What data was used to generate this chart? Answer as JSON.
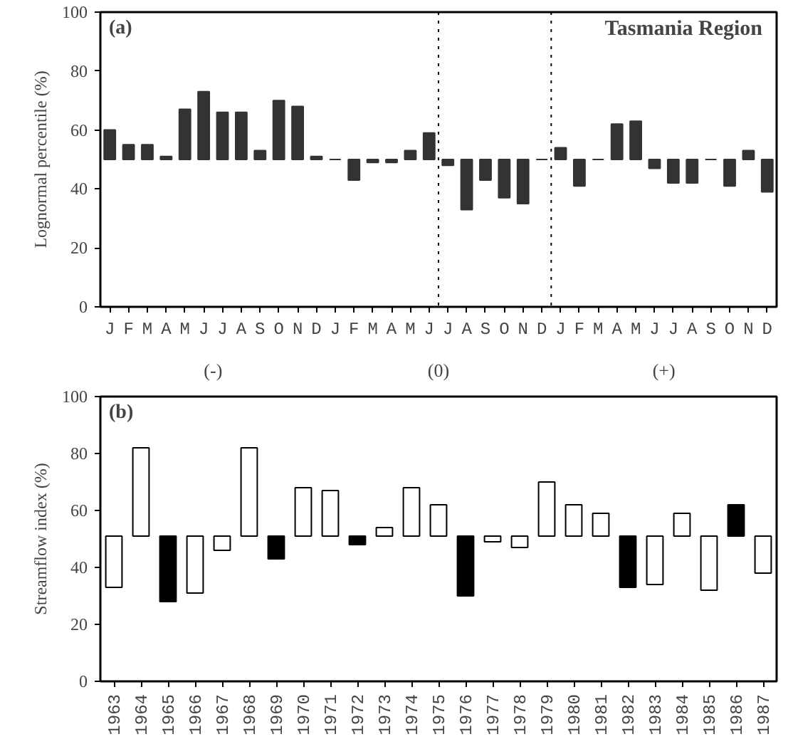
{
  "chart_data": [
    {
      "type": "bar",
      "title": "Tasmania Region",
      "ylabel": "Lognormal percentile (%)",
      "annotations": [
        "(a)",
        "(-)",
        "(0)",
        "(+)"
      ],
      "categories": [
        "J",
        "F",
        "M",
        "A",
        "M",
        "J",
        "J",
        "A",
        "S",
        "O",
        "N",
        "D",
        "J",
        "F",
        "M",
        "A",
        "M",
        "J",
        "J",
        "A",
        "S",
        "O",
        "N",
        "D",
        "J",
        "F",
        "M",
        "A",
        "M",
        "J",
        "J",
        "A",
        "S",
        "O",
        "N",
        "D"
      ],
      "values": [
        10,
        5,
        5,
        1,
        17,
        23,
        16,
        16,
        3,
        20,
        18,
        1,
        0,
        -7,
        -1,
        -1,
        3,
        9,
        -2,
        -17,
        -7,
        -13,
        -15,
        0,
        4,
        -9,
        0,
        12,
        13,
        -3,
        -8,
        -8,
        0,
        -9,
        3,
        -11
      ],
      "base": [
        50,
        50,
        50,
        50,
        50,
        50,
        50,
        50,
        50,
        50,
        50,
        50,
        50,
        50,
        50,
        50,
        50,
        50,
        50,
        50,
        50,
        50,
        50,
        50,
        50,
        50,
        50,
        50,
        50,
        50,
        50,
        50,
        50,
        50,
        50,
        50
      ],
      "color": "#333333",
      "ylim": [
        0,
        100
      ],
      "yticks": [
        0,
        20,
        40,
        60,
        80,
        100
      ],
      "grid": false
    },
    {
      "type": "bar",
      "ylabel": "Streamflow index (%)",
      "annotations": [
        "(b)"
      ],
      "categories": [
        "1963",
        "1964",
        "1965",
        "1966",
        "1967",
        "1968",
        "1969",
        "1970",
        "1971",
        "1972",
        "1973",
        "1974",
        "1975",
        "1976",
        "1977",
        "1978",
        "1979",
        "1980",
        "1981",
        "1982",
        "1983",
        "1984",
        "1985",
        "1986",
        "1987"
      ],
      "values": [
        -18,
        31,
        -23,
        -20,
        -5,
        31,
        -8,
        17,
        16,
        -3,
        3,
        17,
        11,
        -21,
        -2,
        -4,
        19,
        11,
        8,
        -18,
        -17,
        8,
        -19,
        11,
        -13
      ],
      "base": [
        51,
        51,
        51,
        51,
        51,
        51,
        51,
        51,
        51,
        51,
        51,
        51,
        51,
        51,
        51,
        51,
        51,
        51,
        51,
        51,
        51,
        51,
        51,
        51,
        51
      ],
      "colors": [
        "#ffffff",
        "#ffffff",
        "#000000",
        "#ffffff",
        "#ffffff",
        "#ffffff",
        "#000000",
        "#ffffff",
        "#ffffff",
        "#000000",
        "#ffffff",
        "#ffffff",
        "#ffffff",
        "#000000",
        "#ffffff",
        "#ffffff",
        "#ffffff",
        "#ffffff",
        "#ffffff",
        "#000000",
        "#ffffff",
        "#ffffff",
        "#ffffff",
        "#000000",
        "#ffffff"
      ],
      "ylim": [
        0,
        100
      ],
      "yticks": [
        0,
        20,
        40,
        60,
        80,
        100
      ],
      "grid": false
    }
  ]
}
